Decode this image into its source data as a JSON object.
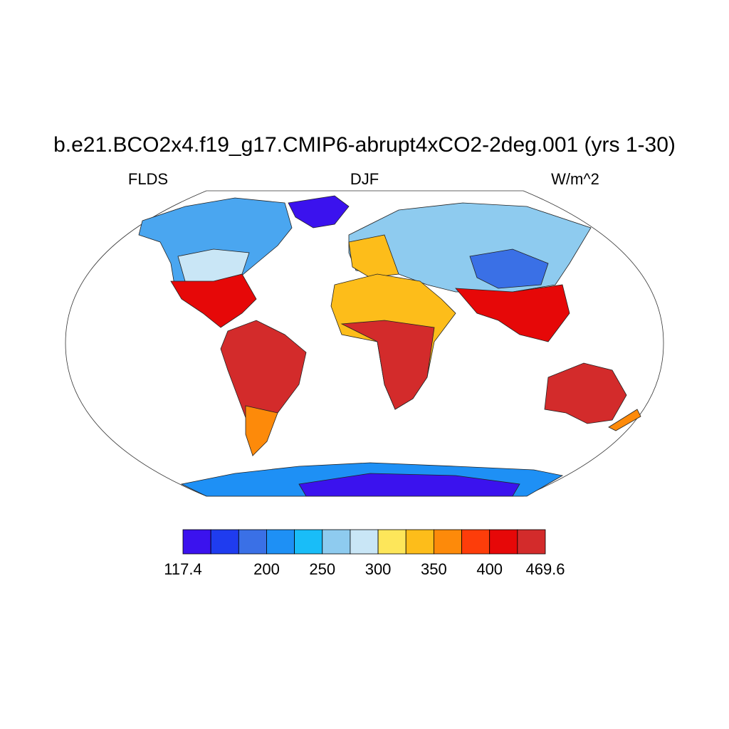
{
  "title": "b.e21.BCO2x4.f19_g17.CMIP6-abrupt4xCO2-2deg.001 (yrs 1-30)",
  "left_label": "FLDS",
  "center_label": "DJF",
  "right_label": "W/m^2",
  "colorbar": {
    "colors": [
      "#3b12ee",
      "#1f3cef",
      "#3a70e6",
      "#1e90f5",
      "#19bdf8",
      "#8ecbef",
      "#c9e6f6",
      "#fde65a",
      "#fdbd1a",
      "#fd8a0a",
      "#fd3d0a",
      "#e60808",
      "#d32b2b"
    ],
    "range": [
      117.4,
      469.6
    ],
    "levels": [
      150,
      175,
      200,
      225,
      250,
      275,
      300,
      325,
      350,
      375,
      400,
      425
    ],
    "ticks": [
      117.4,
      200,
      250,
      300,
      350,
      400,
      469.6
    ]
  }
}
